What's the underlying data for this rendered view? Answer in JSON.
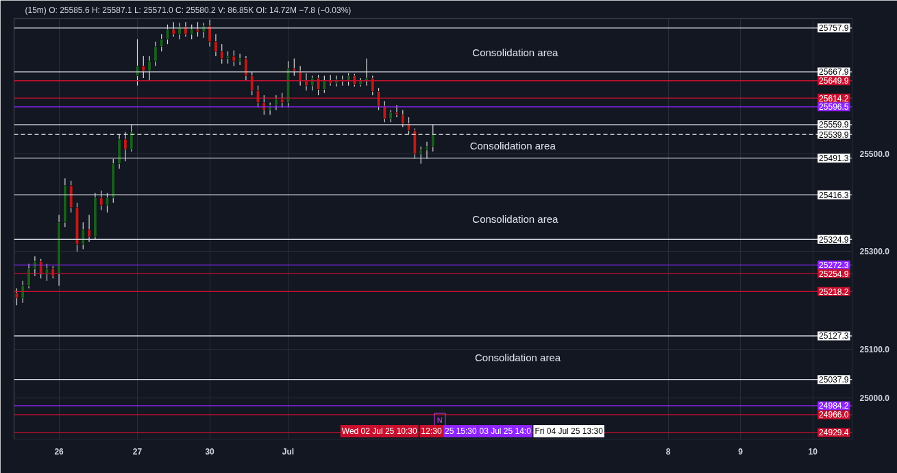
{
  "chart_data": {
    "type": "candlestick",
    "title": "(15m)  O: 25585.6  H: 25587.1  L: 25571.0  C: 25580.2  V: 86.85K  OI: 14.72M  −7.8  (−0.03%)",
    "categories": [
      null,
      null,
      null,
      null,
      null,
      null,
      null,
      "26",
      null,
      null,
      null,
      null,
      null,
      null,
      null,
      null,
      null,
      null,
      null,
      null,
      "27",
      null,
      null,
      null,
      null,
      null,
      null,
      null,
      null,
      null,
      null,
      null,
      "30",
      null,
      null,
      null,
      null,
      null,
      null,
      null,
      null,
      null,
      null,
      null,
      null,
      "Jul",
      null,
      null,
      null,
      null,
      null,
      null,
      null,
      null,
      null,
      null,
      null,
      null,
      null,
      null,
      null,
      null,
      null,
      null,
      null,
      null,
      null,
      null,
      null,
      null,
      null,
      null,
      null,
      null,
      null,
      null,
      null,
      null,
      null,
      null,
      null,
      null,
      null,
      null,
      null,
      null,
      null,
      null,
      null,
      null,
      null,
      null,
      null,
      null,
      null,
      null,
      null,
      null,
      null,
      null,
      null,
      null,
      null,
      null,
      null,
      null,
      null,
      null,
      "8",
      null,
      null,
      null,
      null,
      null,
      null,
      null,
      null,
      null,
      null,
      null,
      "9",
      null,
      null,
      null,
      null,
      null,
      null,
      null,
      null,
      null,
      null,
      null,
      "10",
      null,
      null,
      null,
      null,
      null,
      null
    ],
    "ohlc": [
      [
        25215,
        25225,
        25190,
        25205
      ],
      [
        25205,
        25240,
        25195,
        25230
      ],
      [
        25230,
        25275,
        25225,
        25265
      ],
      [
        25265,
        25290,
        25250,
        25280
      ],
      [
        25280,
        25285,
        25245,
        25255
      ],
      [
        25255,
        25275,
        25240,
        25265
      ],
      [
        25265,
        25270,
        25245,
        25250
      ],
      [
        25255,
        25375,
        25230,
        25360
      ],
      [
        25360,
        25450,
        25350,
        25435
      ],
      [
        25435,
        25445,
        25380,
        25390
      ],
      [
        25390,
        25400,
        25300,
        25315
      ],
      [
        25315,
        25360,
        25305,
        25345
      ],
      [
        25345,
        25375,
        25320,
        25330
      ],
      [
        25330,
        25420,
        25325,
        25410
      ],
      [
        25410,
        25425,
        25385,
        25395
      ],
      [
        25395,
        25420,
        25380,
        25410
      ],
      [
        25410,
        25490,
        25400,
        25480
      ],
      [
        25480,
        25540,
        25470,
        25530
      ],
      [
        25530,
        25545,
        25485,
        25510
      ],
      [
        25510,
        25560,
        25505,
        25545
      ],
      [
        25660,
        25735,
        25640,
        25680
      ],
      [
        25680,
        25700,
        25655,
        25670
      ],
      [
        25670,
        25700,
        25650,
        25690
      ],
      [
        25690,
        25730,
        25680,
        25720
      ],
      [
        25720,
        25745,
        25710,
        25735
      ],
      [
        25735,
        25765,
        25725,
        25755
      ],
      [
        25755,
        25770,
        25740,
        25745
      ],
      [
        25745,
        25768,
        25735,
        25760
      ],
      [
        25760,
        25770,
        25740,
        25745
      ],
      [
        25745,
        25765,
        25735,
        25755
      ],
      [
        25755,
        25770,
        25740,
        25750
      ],
      [
        25750,
        25768,
        25738,
        25762
      ],
      [
        25762,
        25775,
        25720,
        25730
      ],
      [
        25730,
        25745,
        25700,
        25710
      ],
      [
        25710,
        25725,
        25685,
        25695
      ],
      [
        25695,
        25710,
        25685,
        25700
      ],
      [
        25700,
        25712,
        25680,
        25690
      ],
      [
        25690,
        25705,
        25682,
        25695
      ],
      [
        25695,
        25700,
        25650,
        25660
      ],
      [
        25660,
        25668,
        25620,
        25630
      ],
      [
        25630,
        25640,
        25595,
        25605
      ],
      [
        25605,
        25620,
        25580,
        25590
      ],
      [
        25590,
        25605,
        25580,
        25600
      ],
      [
        25600,
        25620,
        25590,
        25612
      ],
      [
        25612,
        25625,
        25595,
        25605
      ],
      [
        25605,
        25690,
        25595,
        25675
      ],
      [
        25675,
        25695,
        25660,
        25670
      ],
      [
        25670,
        25680,
        25640,
        25650
      ],
      [
        25650,
        25665,
        25630,
        25640
      ],
      [
        25640,
        25660,
        25630,
        25655
      ],
      [
        25655,
        25662,
        25620,
        25632
      ],
      [
        25632,
        25660,
        25625,
        25650
      ],
      [
        25650,
        25662,
        25640,
        25645
      ],
      [
        25645,
        25660,
        25638,
        25652
      ],
      [
        25652,
        25660,
        25640,
        25648
      ],
      [
        25648,
        25665,
        25640,
        25660
      ],
      [
        25660,
        25664,
        25638,
        25642
      ],
      [
        25642,
        25655,
        25638,
        25650
      ],
      [
        25650,
        25695,
        25640,
        25655
      ],
      [
        25655,
        25660,
        25620,
        25628
      ],
      [
        25628,
        25635,
        25590,
        25598
      ],
      [
        25598,
        25608,
        25565,
        25572
      ],
      [
        25572,
        25590,
        25565,
        25585
      ],
      [
        25585,
        25600,
        25575,
        25580
      ],
      [
        25580,
        25590,
        25555,
        25562
      ],
      [
        25562,
        25575,
        25540,
        25548
      ],
      [
        25548,
        25552,
        25490,
        25500
      ],
      [
        25500,
        25515,
        25480,
        25508
      ],
      [
        25508,
        25525,
        25490,
        25515
      ],
      [
        25515,
        25560,
        25505,
        25540
      ],
      null,
      null,
      null,
      null,
      null,
      null,
      null,
      null,
      null,
      null,
      null,
      null,
      null,
      null,
      null,
      null,
      null,
      null,
      null,
      null,
      null,
      null,
      null,
      null,
      null,
      null,
      null,
      null,
      null,
      null,
      null,
      null,
      null,
      null,
      null,
      null,
      null,
      null,
      null,
      null,
      null,
      null,
      null,
      null,
      null,
      null,
      null,
      null,
      null,
      null,
      null,
      null,
      null,
      null,
      null,
      null,
      null,
      null,
      null,
      null,
      null,
      null,
      null,
      null,
      null,
      null,
      null,
      null,
      null
    ],
    "ylim": [
      24916,
      25778
    ],
    "yticks": [
      {
        "value": 25000,
        "label": "25000.0"
      },
      {
        "value": 25100,
        "label": "25100.0"
      },
      {
        "value": 25300,
        "label": "25300.0"
      },
      {
        "value": 25500,
        "label": "25500.0"
      }
    ],
    "grid": true,
    "ref_lines": [
      {
        "axis": "y",
        "value": 25757.9,
        "label": "25757.9",
        "color": "#d1d4dc"
      },
      {
        "axis": "y",
        "value": 25667.9,
        "label": "25667.9",
        "color": "#d1d4dc"
      },
      {
        "axis": "y",
        "value": 25649.9,
        "label": "25649.9",
        "color": "#c8102e"
      },
      {
        "axis": "y",
        "value": 25614.2,
        "label": "25614.2",
        "color": "#c8102e"
      },
      {
        "axis": "y",
        "value": 25596.5,
        "label": "25596.5",
        "color": "#8e24ff"
      },
      {
        "axis": "y",
        "value": 25559.9,
        "label": "25559.9",
        "color": "#d1d4dc"
      },
      {
        "axis": "y",
        "value": 25539.9,
        "label": "25539.9",
        "color": "#ffffff",
        "line_style": "dashed"
      },
      {
        "axis": "y",
        "value": 25491.3,
        "label": "25491.3",
        "color": "#d1d4dc"
      },
      {
        "axis": "y",
        "value": 25416.3,
        "label": "25416.3",
        "color": "#d1d4dc"
      },
      {
        "axis": "y",
        "value": 25324.9,
        "label": "25324.9",
        "color": "#d1d4dc"
      },
      {
        "axis": "y",
        "value": 25272.3,
        "label": "25272.3",
        "color": "#8e24ff"
      },
      {
        "axis": "y",
        "value": 25254.9,
        "label": "25254.9",
        "color": "#c8102e"
      },
      {
        "axis": "y",
        "value": 25218.2,
        "label": "25218.2",
        "color": "#c8102e"
      },
      {
        "axis": "y",
        "value": 25127.3,
        "label": "25127.3",
        "color": "#d1d4dc"
      },
      {
        "axis": "y",
        "value": 25037.9,
        "label": "25037.9",
        "color": "#d1d4dc"
      },
      {
        "axis": "y",
        "value": 24984.2,
        "label": "24984.2",
        "color": "#8e24ff"
      },
      {
        "axis": "y",
        "value": 24966.0,
        "label": "24966.0",
        "color": "#c8102e"
      },
      {
        "axis": "y",
        "value": 24929.4,
        "label": "24929.4",
        "color": "#c8102e"
      }
    ],
    "annotations": [
      "Consolidation area",
      "Consolidation area",
      "Consolidation area",
      "Consolidation area",
      "N",
      "Wed 02 Jul 25 10:30",
      "12:30",
      "25 15:30",
      "03 Jul 25 14:0",
      "Fri 04 Jul 25 13:30"
    ]
  }
}
